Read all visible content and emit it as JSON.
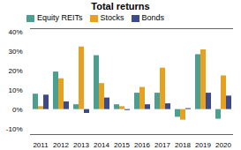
{
  "chart_data": {
    "type": "bar",
    "title": "Total returns",
    "categories": [
      "2011",
      "2012",
      "2013",
      "2014",
      "2015",
      "2016",
      "2017",
      "2018",
      "2019",
      "2020"
    ],
    "series": [
      {
        "name": "Equity REITs",
        "color": "#4c9e8e",
        "values": [
          8,
          19.5,
          2.5,
          28,
          2.5,
          8.5,
          8.5,
          -4,
          28.5,
          -5
        ]
      },
      {
        "name": "Stocks",
        "color": "#e8a020",
        "values": [
          1.5,
          16,
          32.5,
          13.5,
          1.5,
          11.5,
          21.5,
          -5.5,
          31,
          17.5
        ]
      },
      {
        "name": "Bonds",
        "color": "#3d4a8a",
        "values": [
          7.5,
          4,
          -2,
          6,
          -0.5,
          2.5,
          3,
          0.5,
          8.5,
          7
        ]
      }
    ],
    "ylim": [
      -13,
      42
    ],
    "yticks": [
      {
        "value": -10,
        "label": "-10%"
      },
      {
        "value": 0,
        "label": "0%"
      },
      {
        "value": 10,
        "label": "10%"
      },
      {
        "value": 20,
        "label": "20%"
      },
      {
        "value": 30,
        "label": "30%"
      },
      {
        "value": 40,
        "label": "40%"
      }
    ],
    "grid": false,
    "legend": "top"
  }
}
